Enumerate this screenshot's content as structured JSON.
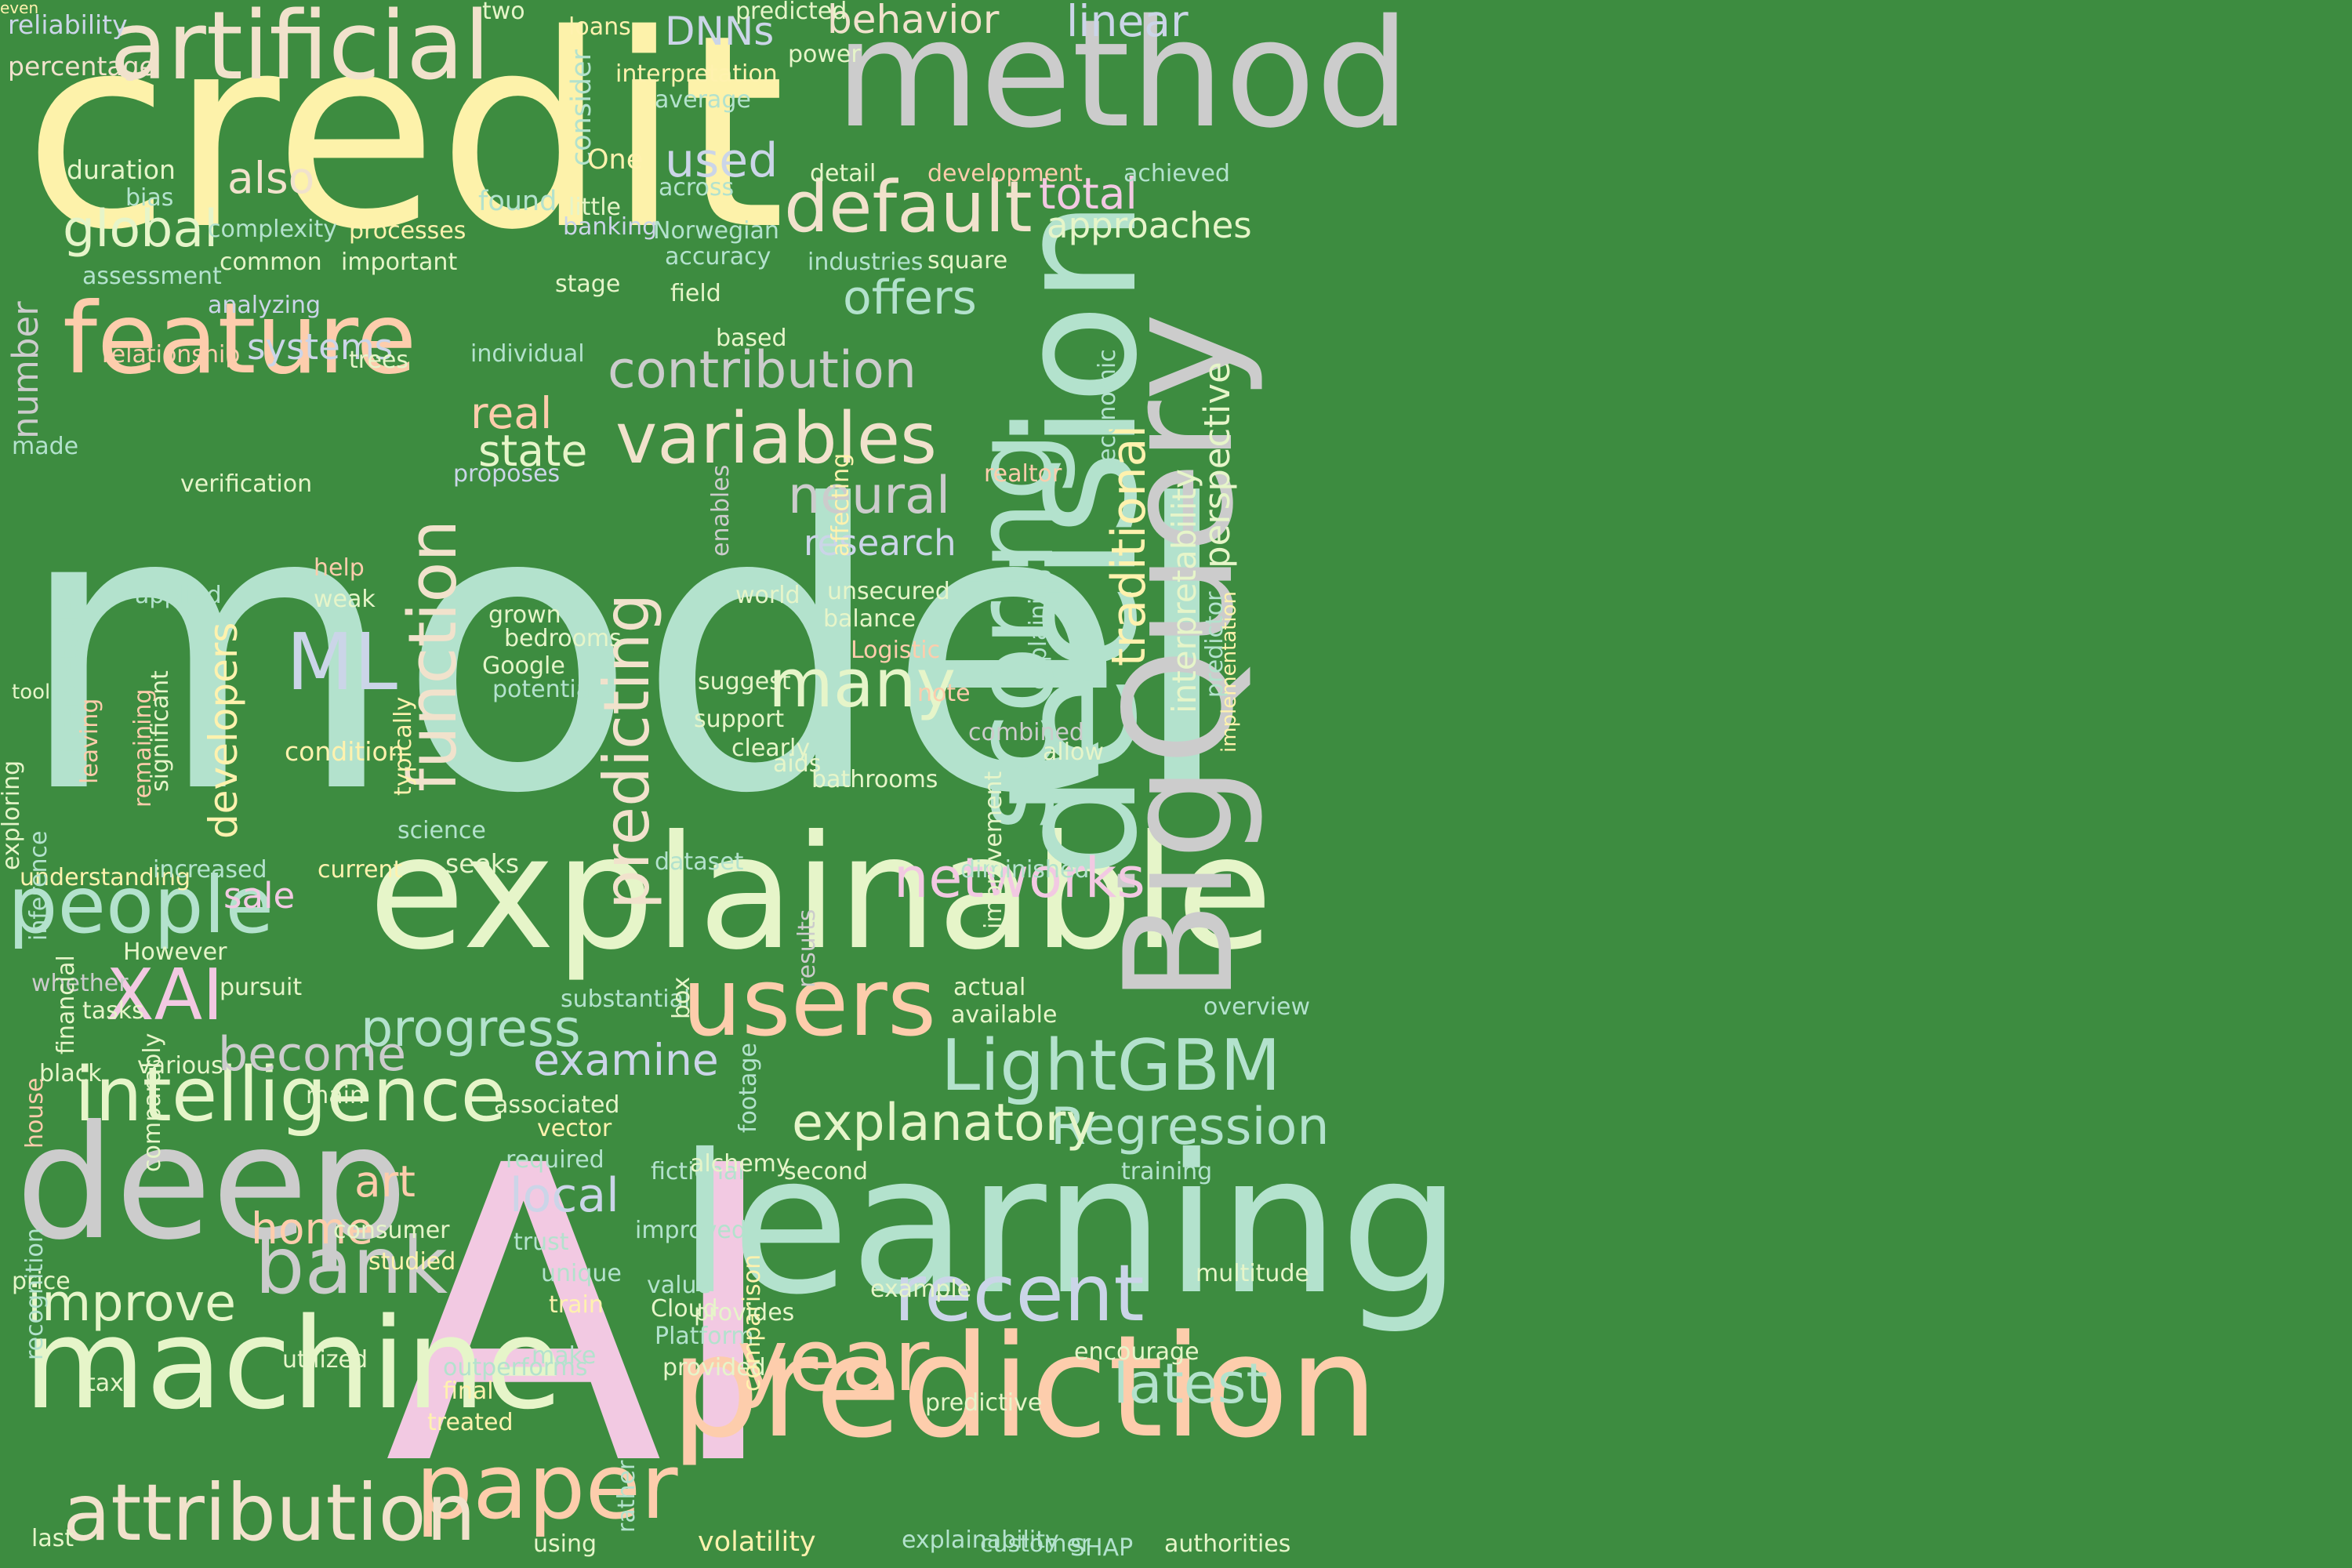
{
  "background_color": "#3d8c40",
  "palette": {
    "pink": "#f2c9e2",
    "yellow": "#fdf2aa",
    "mint": "#b3e2cd",
    "peach": "#fdcdac",
    "gray": "#cccccc",
    "lime": "#e6f5c9",
    "lavender": "#cbd5e8",
    "sand": "#f1e2cc",
    "gold": "#fff2ae"
  },
  "words": [
    {
      "text": "model",
      "c": "mint",
      "v": false
    },
    {
      "text": "credit",
      "c": "yellow",
      "v": false
    },
    {
      "text": "AI",
      "c": "pink",
      "v": false
    },
    {
      "text": "explainable",
      "c": "lime",
      "v": false
    },
    {
      "text": "learning",
      "c": "mint",
      "v": false
    },
    {
      "text": "method",
      "c": "gray",
      "v": false
    },
    {
      "text": "prediction",
      "c": "peach",
      "v": false
    },
    {
      "text": "deep",
      "c": "gray",
      "v": false
    },
    {
      "text": "machine",
      "c": "lime",
      "v": false
    },
    {
      "text": "decision",
      "c": "mint",
      "v": true
    },
    {
      "text": "BigQuery",
      "c": "gray",
      "v": true
    },
    {
      "text": "scoring",
      "c": "mint",
      "v": true
    },
    {
      "text": "artificial",
      "c": "sand",
      "v": false
    },
    {
      "text": "feature",
      "c": "peach",
      "v": false
    },
    {
      "text": "users",
      "c": "peach",
      "v": false
    },
    {
      "text": "intelligence",
      "c": "lime",
      "v": false
    },
    {
      "text": "paper",
      "c": "peach",
      "v": false
    },
    {
      "text": "attribution",
      "c": "sand",
      "v": false
    },
    {
      "text": "LightGBM",
      "c": "mint",
      "v": false
    },
    {
      "text": "people",
      "c": "mint",
      "v": false
    },
    {
      "text": "recent",
      "c": "lavender",
      "v": false
    },
    {
      "text": "bank",
      "c": "gray",
      "v": false
    },
    {
      "text": "year",
      "c": "peach",
      "v": false
    },
    {
      "text": "variables",
      "c": "sand",
      "v": false
    },
    {
      "text": "default",
      "c": "sand",
      "v": false
    },
    {
      "text": "function",
      "c": "sand",
      "v": true
    },
    {
      "text": "many",
      "c": "lime",
      "v": false
    },
    {
      "text": "XAI",
      "c": "pink",
      "v": false
    },
    {
      "text": "predicting",
      "c": "sand",
      "v": true
    },
    {
      "text": "Regression",
      "c": "mint",
      "v": false
    },
    {
      "text": "explanatory",
      "c": "lime",
      "v": false
    },
    {
      "text": "latest",
      "c": "mint",
      "v": false
    },
    {
      "text": "contribution",
      "c": "gray",
      "v": false
    },
    {
      "text": "networks",
      "c": "pink",
      "v": false
    },
    {
      "text": "progress",
      "c": "mint",
      "v": false
    },
    {
      "text": "improve",
      "c": "lime",
      "v": false
    },
    {
      "text": "neural",
      "c": "gray",
      "v": false
    },
    {
      "text": "ML",
      "c": "lavender",
      "v": false
    },
    {
      "text": "global",
      "c": "lime",
      "v": false
    },
    {
      "text": "traditional",
      "c": "gold",
      "v": true
    },
    {
      "text": "offers",
      "c": "mint",
      "v": false
    },
    {
      "text": "perspective",
      "c": "lime",
      "v": true
    },
    {
      "text": "interpretability",
      "c": "lime",
      "v": true
    },
    {
      "text": "developers",
      "c": "gold",
      "v": true
    },
    {
      "text": "become",
      "c": "gray",
      "v": false
    },
    {
      "text": "examine",
      "c": "lavender",
      "v": false
    },
    {
      "text": "local",
      "c": "lavender",
      "v": false
    },
    {
      "text": "home",
      "c": "peach",
      "v": false
    },
    {
      "text": "art",
      "c": "peach",
      "v": false
    },
    {
      "text": "real",
      "c": "peach",
      "v": false
    },
    {
      "text": "state",
      "c": "lime",
      "v": false
    },
    {
      "text": "total",
      "c": "pink",
      "v": false
    },
    {
      "text": "used",
      "c": "lavender",
      "v": false
    },
    {
      "text": "also",
      "c": "sand",
      "v": false
    },
    {
      "text": "linear",
      "c": "lavender",
      "v": false
    },
    {
      "text": "behavior",
      "c": "sand",
      "v": false
    },
    {
      "text": "DNNs",
      "c": "lavender",
      "v": false
    },
    {
      "text": "sale",
      "c": "pink",
      "v": false
    },
    {
      "text": "research",
      "c": "lavender",
      "v": false
    },
    {
      "text": "approaches",
      "c": "lime",
      "v": false
    },
    {
      "text": "systems",
      "c": "lavender",
      "v": false
    },
    {
      "text": "number",
      "c": "gray",
      "v": true
    },
    {
      "text": "reliability",
      "c": "lavender",
      "v": false
    },
    {
      "text": "percentage",
      "c": "sand",
      "v": false
    },
    {
      "text": "duration",
      "c": "lime",
      "v": false
    },
    {
      "text": "bias",
      "c": "mint",
      "v": false
    },
    {
      "text": "complexity",
      "c": "mint",
      "v": false
    },
    {
      "text": "assessment",
      "c": "mint",
      "v": false
    },
    {
      "text": "common",
      "c": "lime",
      "v": false
    },
    {
      "text": "analyzing",
      "c": "lavender",
      "v": false
    },
    {
      "text": "processes",
      "c": "gold",
      "v": false
    },
    {
      "text": "important",
      "c": "lime",
      "v": false
    },
    {
      "text": "relationship",
      "c": "peach",
      "v": false
    },
    {
      "text": "trees",
      "c": "lime",
      "v": false
    },
    {
      "text": "individual",
      "c": "mint",
      "v": false
    },
    {
      "text": "made",
      "c": "mint",
      "v": false
    },
    {
      "text": "verification",
      "c": "lime",
      "v": false
    },
    {
      "text": "proposes",
      "c": "lavender",
      "v": false
    },
    {
      "text": "two",
      "c": "lime",
      "v": false
    },
    {
      "text": "loans",
      "c": "gold",
      "v": false
    },
    {
      "text": "predicted",
      "c": "lime",
      "v": false
    },
    {
      "text": "power",
      "c": "lime",
      "v": false
    },
    {
      "text": "interpretation",
      "c": "gold",
      "v": false
    },
    {
      "text": "average",
      "c": "mint",
      "v": false
    },
    {
      "text": "consider",
      "c": "mint",
      "v": true
    },
    {
      "text": "One",
      "c": "gold",
      "v": false
    },
    {
      "text": "across",
      "c": "mint",
      "v": false
    },
    {
      "text": "found",
      "c": "mint",
      "v": false
    },
    {
      "text": "little",
      "c": "lime",
      "v": false
    },
    {
      "text": "banking",
      "c": "lavender",
      "v": false
    },
    {
      "text": "Norwegian",
      "c": "mint",
      "v": false
    },
    {
      "text": "accuracy",
      "c": "mint",
      "v": false
    },
    {
      "text": "stage",
      "c": "lime",
      "v": false
    },
    {
      "text": "field",
      "c": "lime",
      "v": false
    },
    {
      "text": "detail",
      "c": "lime",
      "v": false
    },
    {
      "text": "development",
      "c": "peach",
      "v": false
    },
    {
      "text": "achieved",
      "c": "mint",
      "v": false
    },
    {
      "text": "industries",
      "c": "mint",
      "v": false
    },
    {
      "text": "square",
      "c": "lime",
      "v": false
    },
    {
      "text": "based",
      "c": "lime",
      "v": false
    },
    {
      "text": "economic",
      "c": "mint",
      "v": true
    },
    {
      "text": "realtor",
      "c": "peach",
      "v": false
    },
    {
      "text": "combined",
      "c": "gray",
      "v": false
    },
    {
      "text": "implementation",
      "c": "gold",
      "v": true
    },
    {
      "text": "predictor",
      "c": "mint",
      "v": true
    },
    {
      "text": "explaining",
      "c": "mint",
      "v": true
    },
    {
      "text": "affecting",
      "c": "gold",
      "v": true
    },
    {
      "text": "unsecured",
      "c": "lime",
      "v": false
    },
    {
      "text": "balance",
      "c": "lime",
      "v": false
    },
    {
      "text": "Logistic",
      "c": "peach",
      "v": false
    },
    {
      "text": "note",
      "c": "peach",
      "v": false
    },
    {
      "text": "enables",
      "c": "gray",
      "v": true
    },
    {
      "text": "world",
      "c": "lime",
      "v": false
    },
    {
      "text": "help",
      "c": "peach",
      "v": false
    },
    {
      "text": "weak",
      "c": "lime",
      "v": false
    },
    {
      "text": "grown",
      "c": "lime",
      "v": false
    },
    {
      "text": "bedrooms",
      "c": "lime",
      "v": false
    },
    {
      "text": "Google",
      "c": "lime",
      "v": false
    },
    {
      "text": "potential",
      "c": "mint",
      "v": false
    },
    {
      "text": "suggest",
      "c": "lime",
      "v": false
    },
    {
      "text": "support",
      "c": "lime",
      "v": false
    },
    {
      "text": "clearly",
      "c": "lime",
      "v": false
    },
    {
      "text": "aids",
      "c": "lime",
      "v": false
    },
    {
      "text": "bathrooms",
      "c": "lime",
      "v": false
    },
    {
      "text": "condition",
      "c": "gold",
      "v": false
    },
    {
      "text": "applied",
      "c": "mint",
      "v": false
    },
    {
      "text": "tool",
      "c": "lime",
      "v": false
    },
    {
      "text": "interpretable",
      "c": "mint",
      "v": true
    },
    {
      "text": "leaving",
      "c": "peach",
      "v": true
    },
    {
      "text": "remaining",
      "c": "peach",
      "v": true
    },
    {
      "text": "significant",
      "c": "lime",
      "v": true
    },
    {
      "text": "exploring",
      "c": "lime",
      "v": true
    },
    {
      "text": "typically",
      "c": "gold",
      "v": true
    },
    {
      "text": "science",
      "c": "mint",
      "v": false
    },
    {
      "text": "seeks",
      "c": "lime",
      "v": false
    },
    {
      "text": "understanding",
      "c": "gold",
      "v": false
    },
    {
      "text": "increased",
      "c": "mint",
      "v": false
    },
    {
      "text": "current",
      "c": "gold",
      "v": false
    },
    {
      "text": "dataset",
      "c": "mint",
      "v": false
    },
    {
      "text": "diminished",
      "c": "mint",
      "v": false
    },
    {
      "text": "allow",
      "c": "lime",
      "v": false
    },
    {
      "text": "overview",
      "c": "mint",
      "v": false
    },
    {
      "text": "inference",
      "c": "mint",
      "v": true
    },
    {
      "text": "However",
      "c": "lime",
      "v": false
    },
    {
      "text": "whether",
      "c": "gray",
      "v": false
    },
    {
      "text": "pursuit",
      "c": "lime",
      "v": false
    },
    {
      "text": "tasks",
      "c": "lime",
      "v": false
    },
    {
      "text": "black",
      "c": "lime",
      "v": false
    },
    {
      "text": "house",
      "c": "peach",
      "v": true
    },
    {
      "text": "financial",
      "c": "lime",
      "v": true
    },
    {
      "text": "various",
      "c": "lime",
      "v": false
    },
    {
      "text": "main",
      "c": "lime",
      "v": false
    },
    {
      "text": "substantial",
      "c": "mint",
      "v": false
    },
    {
      "text": "box",
      "c": "lime",
      "v": true
    },
    {
      "text": "results",
      "c": "gray",
      "v": true
    },
    {
      "text": "improvement",
      "c": "lime",
      "v": true
    },
    {
      "text": "actual",
      "c": "lime",
      "v": false
    },
    {
      "text": "available",
      "c": "lime",
      "v": false
    },
    {
      "text": "associated",
      "c": "lime",
      "v": false
    },
    {
      "text": "vector",
      "c": "gold",
      "v": false
    },
    {
      "text": "required",
      "c": "mint",
      "v": false
    },
    {
      "text": "fictional",
      "c": "mint",
      "v": false
    },
    {
      "text": "alchemy",
      "c": "lime",
      "v": false
    },
    {
      "text": "footage",
      "c": "mint",
      "v": true
    },
    {
      "text": "second",
      "c": "lime",
      "v": false
    },
    {
      "text": "training",
      "c": "mint",
      "v": false
    },
    {
      "text": "multitude",
      "c": "lime",
      "v": false
    },
    {
      "text": "comparably",
      "c": "lime",
      "v": true
    },
    {
      "text": "consumer",
      "c": "lime",
      "v": false
    },
    {
      "text": "studied",
      "c": "gold",
      "v": false
    },
    {
      "text": "trust",
      "c": "mint",
      "v": false
    },
    {
      "text": "improved",
      "c": "mint",
      "v": false
    },
    {
      "text": "unique",
      "c": "mint",
      "v": false
    },
    {
      "text": "train",
      "c": "gold",
      "v": false
    },
    {
      "text": "value",
      "c": "mint",
      "v": false
    },
    {
      "text": "Cloud",
      "c": "lime",
      "v": false
    },
    {
      "text": "Platform",
      "c": "mint",
      "v": false
    },
    {
      "text": "provided",
      "c": "lime",
      "v": false
    },
    {
      "text": "make",
      "c": "mint",
      "v": false
    },
    {
      "text": "example",
      "c": "lime",
      "v": false
    },
    {
      "text": "comparison",
      "c": "gold",
      "v": true
    },
    {
      "text": "predictive",
      "c": "lime",
      "v": false
    },
    {
      "text": "encourage",
      "c": "lime",
      "v": false
    },
    {
      "text": "price",
      "c": "lime",
      "v": false
    },
    {
      "text": "recognition",
      "c": "mint",
      "v": true
    },
    {
      "text": "tax",
      "c": "lime",
      "v": false
    },
    {
      "text": "utilized",
      "c": "lime",
      "v": false
    },
    {
      "text": "outperforms",
      "c": "mint",
      "v": false
    },
    {
      "text": "final",
      "c": "gold",
      "v": false
    },
    {
      "text": "treated",
      "c": "gold",
      "v": false
    },
    {
      "text": "provides",
      "c": "lime",
      "v": false
    },
    {
      "text": "rather",
      "c": "mint",
      "v": true
    },
    {
      "text": "last",
      "c": "lime",
      "v": false
    },
    {
      "text": "using",
      "c": "lime",
      "v": false
    },
    {
      "text": "volatility",
      "c": "gold",
      "v": false
    },
    {
      "text": "explainability",
      "c": "mint",
      "v": false
    },
    {
      "text": "customer",
      "c": "mint",
      "v": false
    },
    {
      "text": "SHAP",
      "c": "mint",
      "v": false
    },
    {
      "text": "authorities",
      "c": "lime",
      "v": false
    },
    {
      "text": "even",
      "c": "gold",
      "v": false
    }
  ]
}
